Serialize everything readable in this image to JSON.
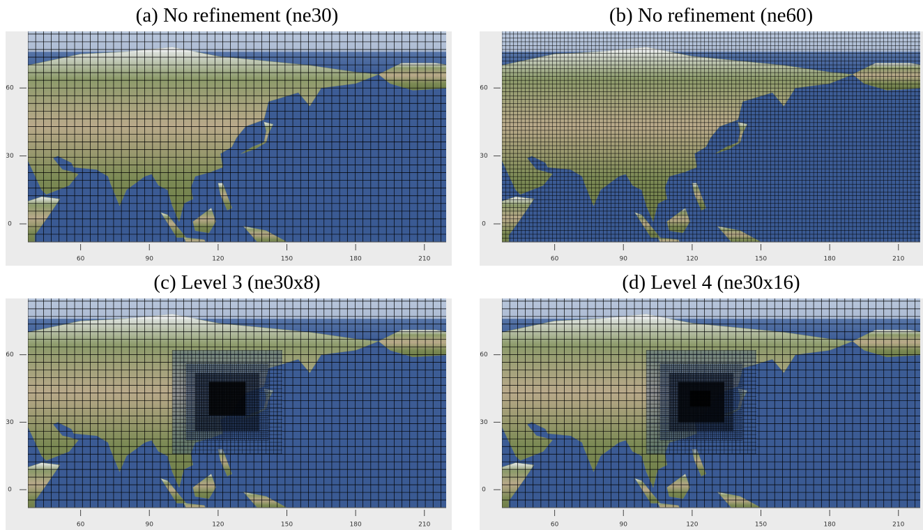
{
  "panels": [
    {
      "title": "(a) No refinement (ne30)",
      "xlim": [
        37,
        219.5
      ],
      "ylim": [
        -8,
        85
      ],
      "xticks": [
        60,
        90,
        120,
        150,
        180,
        210
      ],
      "yticks": [
        0,
        30,
        60
      ]
    },
    {
      "title": "(b) No refinement (ne60)",
      "xlim": [
        37,
        219.5
      ],
      "ylim": [
        -8,
        85
      ],
      "xticks": [
        60,
        90,
        120,
        150,
        180,
        210
      ],
      "yticks": [
        0,
        30,
        60
      ]
    },
    {
      "title": "(c) Level 3 (ne30x8)",
      "xlim": [
        37,
        219.5
      ],
      "ylim": [
        -8,
        85
      ],
      "xticks": [
        60,
        90,
        120,
        150,
        180,
        210
      ],
      "yticks": [
        0,
        30,
        60
      ]
    },
    {
      "title": "(d) Level 4 (ne30x16)",
      "xlim": [
        37,
        219.5
      ],
      "ylim": [
        -8,
        85
      ],
      "xticks": [
        60,
        90,
        120,
        150,
        180,
        210
      ],
      "yticks": [
        0,
        30,
        60
      ]
    }
  ]
}
